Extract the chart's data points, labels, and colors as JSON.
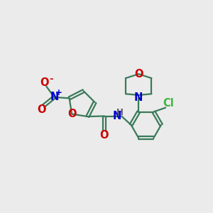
{
  "bg_color": "#ebebeb",
  "bond_color": "#3a7a5a",
  "O_color": "#cc0000",
  "N_color": "#0000cc",
  "Cl_color": "#3ab83a",
  "line_width": 1.6,
  "font_size": 10.5,
  "xlim": [
    0,
    10
  ],
  "ylim": [
    0,
    10
  ]
}
